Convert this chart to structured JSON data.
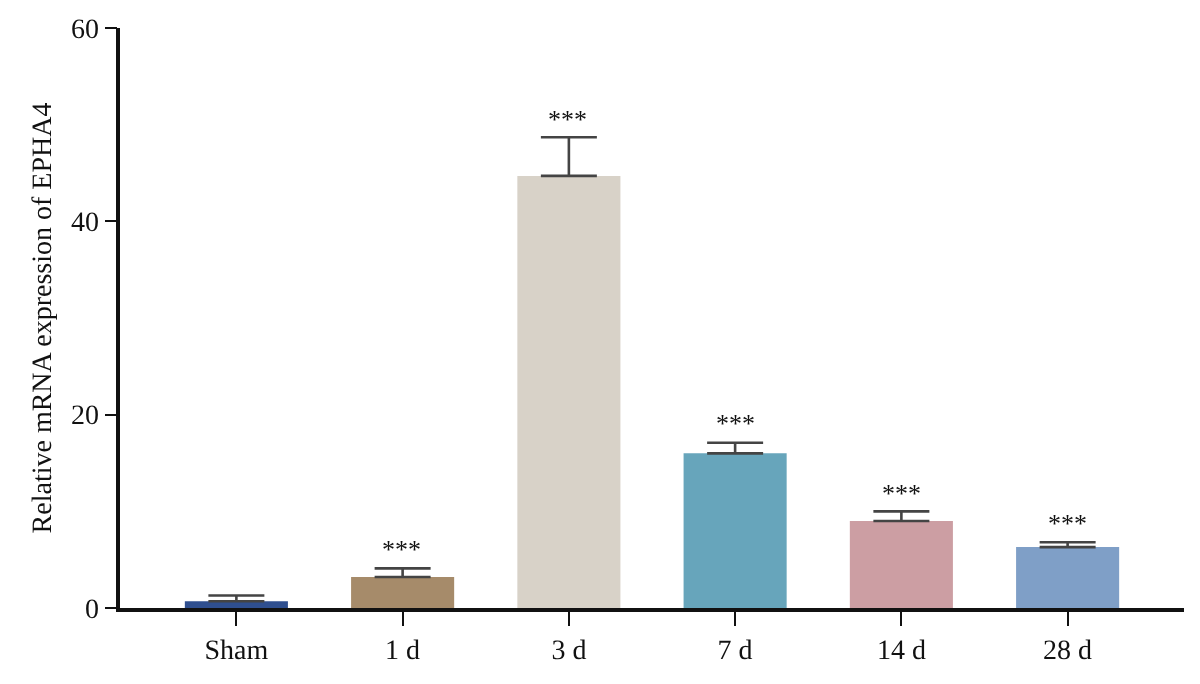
{
  "chart_data": {
    "type": "bar",
    "ylabel": "Relative mRNA expression of EPHA4",
    "categories": [
      "Sham",
      "1 d",
      "3 d",
      "7 d",
      "14 d",
      "28 d"
    ],
    "values": [
      0.7,
      3.2,
      44.7,
      16.0,
      9.0,
      6.3
    ],
    "colors": [
      "#2f4f8f",
      "#a68b6a",
      "#d8d2c8",
      "#67a5bb",
      "#cc9ea3",
      "#7f9fc7"
    ],
    "errors": [
      [
        0.7,
        1.3
      ],
      [
        3.2,
        4.1
      ],
      [
        44.7,
        48.7
      ],
      [
        16.0,
        17.1
      ],
      [
        9.0,
        10.0
      ],
      [
        6.3,
        6.8
      ]
    ],
    "ylim": [
      0,
      60
    ],
    "yticks": [
      0,
      20,
      40,
      60
    ],
    "annotations": [
      {
        "text": "***",
        "x": "1 d",
        "y": 4.1
      },
      {
        "text": "***",
        "x": "3 d",
        "y": 48.7
      },
      {
        "text": "***",
        "x": "7 d",
        "y": 17.1
      },
      {
        "text": "***",
        "x": "14 d",
        "y": 10.0
      },
      {
        "text": "***",
        "x": "28 d",
        "y": 6.8
      }
    ]
  }
}
